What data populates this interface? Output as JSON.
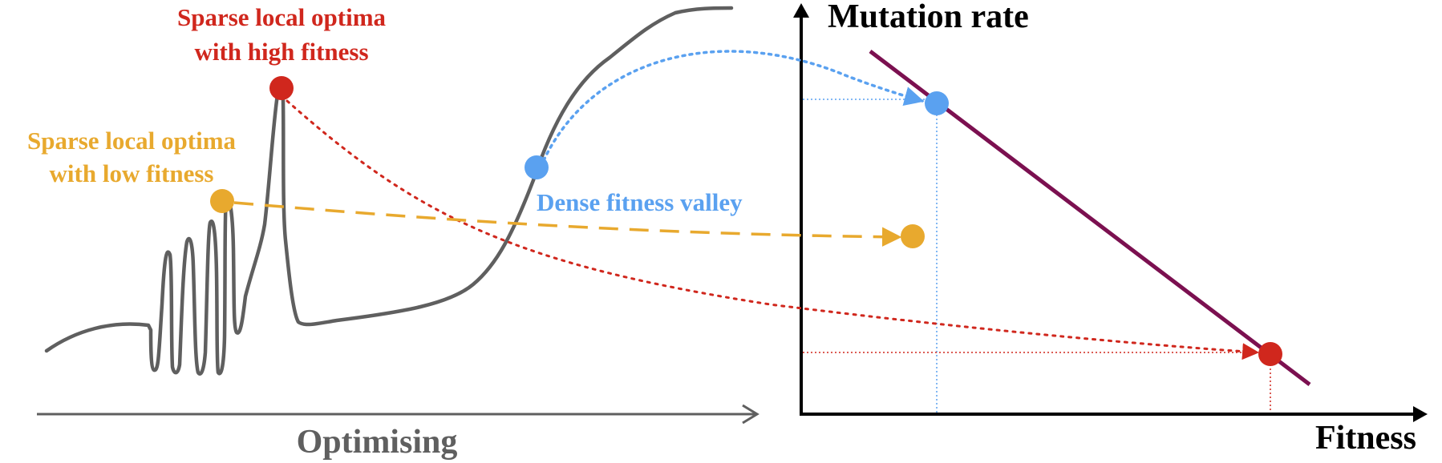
{
  "labels": {
    "high_optima_line1": "Sparse local optima",
    "high_optima_line2": "with high fitness",
    "low_optima_line1": "Sparse local optima",
    "low_optima_line2": "with low fitness",
    "dense_valley": "Dense fitness valley",
    "x_axis_left": "Optimising",
    "y_axis_right": "Mutation rate",
    "x_axis_right": "Fitness"
  },
  "colors": {
    "curve": "#5f5f5f",
    "red": "#d0271d",
    "orange": "#e8a92e",
    "blue": "#5aa1f0",
    "line": "#7b1050",
    "axis": "#000000",
    "axis_left": "#5f5f5f"
  }
}
